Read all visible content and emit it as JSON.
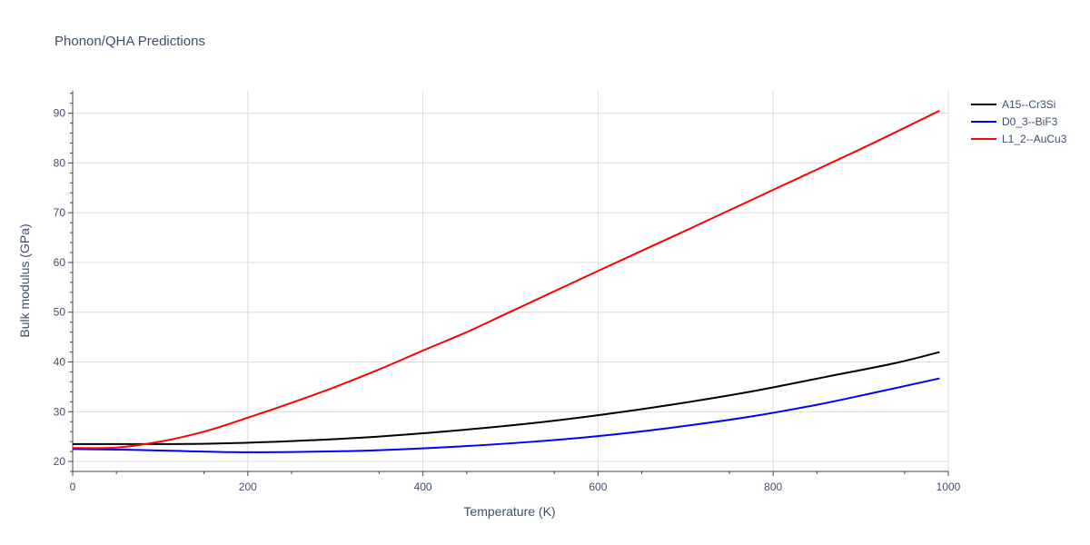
{
  "chart_data": {
    "type": "line",
    "title": "Phonon/QHA Predictions",
    "xlabel": "Temperature (K)",
    "ylabel": "Bulk modulus (GPa)",
    "xlim": [
      0,
      1000
    ],
    "ylim": [
      18,
      94.5
    ],
    "xticks": [
      0,
      200,
      400,
      600,
      800,
      1000
    ],
    "yticks": [
      20,
      30,
      40,
      50,
      60,
      70,
      80,
      90
    ],
    "grid": true,
    "legend_position": "top-right",
    "series": [
      {
        "name": "A15--Cr3Si",
        "color": "#000000",
        "x": [
          0,
          80,
          160,
          250,
          340,
          430,
          520,
          600,
          680,
          770,
          860,
          940,
          990
        ],
        "y": [
          23.5,
          23.5,
          23.6,
          24.1,
          24.9,
          26.1,
          27.6,
          29.3,
          31.3,
          33.9,
          37.0,
          39.8,
          42.0
        ]
      },
      {
        "name": "D0_3--BiF3",
        "color": "#0000ff",
        "x": [
          0,
          80,
          170,
          250,
          340,
          430,
          520,
          600,
          680,
          770,
          850,
          920,
          990
        ],
        "y": [
          22.5,
          22.3,
          21.9,
          21.9,
          22.2,
          22.9,
          23.9,
          25.1,
          26.7,
          28.9,
          31.4,
          34.0,
          36.7
        ]
      },
      {
        "name": "L1_2--AuCu3",
        "color": "#ff0000",
        "x": [
          0,
          50,
          100,
          150,
          200,
          250,
          300,
          350,
          400,
          450,
          500,
          600,
          700,
          800,
          900,
          990
        ],
        "y": [
          22.7,
          22.8,
          24.0,
          26.0,
          28.8,
          31.8,
          35.0,
          38.5,
          42.3,
          46.0,
          50.1,
          58.3,
          66.4,
          74.6,
          82.8,
          90.5
        ]
      }
    ]
  }
}
